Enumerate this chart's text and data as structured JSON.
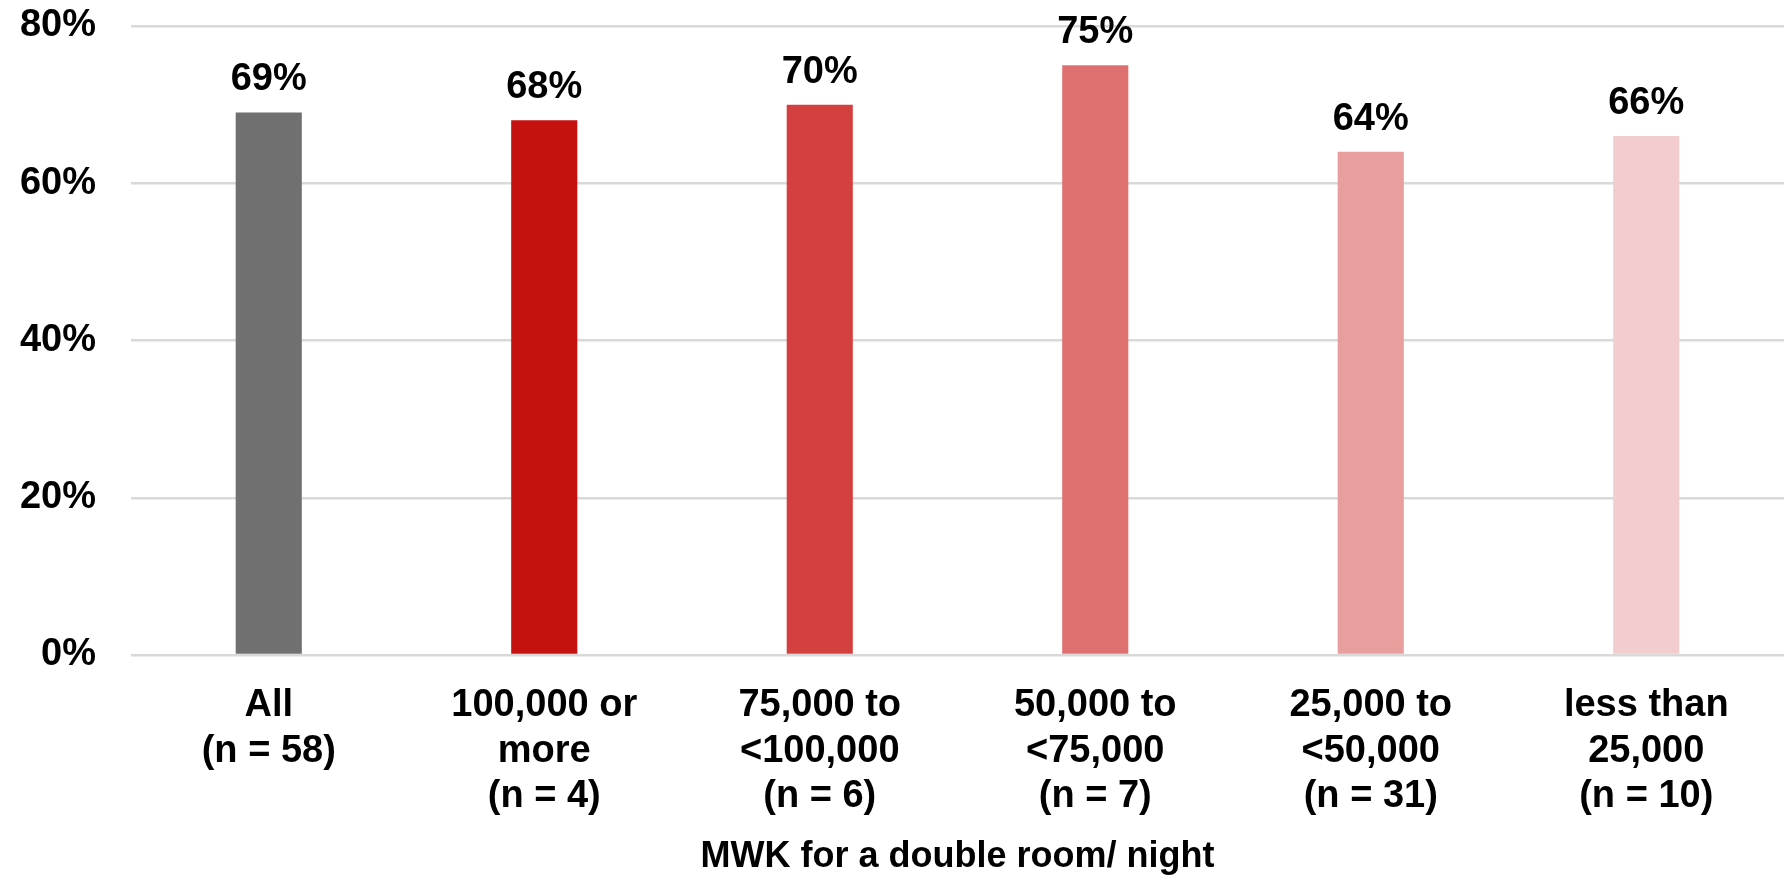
{
  "chart_data": {
    "type": "bar",
    "categories": [
      "All\n(n = 58)",
      "100,000 or\nmore\n(n = 4)",
      "75,000 to\n<100,000\n(n = 6)",
      "50,000 to\n<75,000\n(n = 7)",
      "25,000 to\n<50,000\n(n = 31)",
      "less than\n25,000\n(n = 10)"
    ],
    "values": [
      69,
      68,
      70,
      75,
      64,
      66
    ],
    "colors": [
      "#707070",
      "#c61111",
      "#d44040",
      "#df7070",
      "#e99e9e",
      "#f3cdcd"
    ],
    "value_labels": [
      "69%",
      "68%",
      "70%",
      "75%",
      "64%",
      "66%"
    ],
    "xlabel": "MWK for a double room/ night",
    "ylim": [
      0,
      80
    ],
    "yticks": [
      {
        "value": 0,
        "label": "0%"
      },
      {
        "value": 20,
        "label": "20%"
      },
      {
        "value": 40,
        "label": "40%"
      },
      {
        "value": 60,
        "label": "60%"
      },
      {
        "value": 80,
        "label": "80%"
      }
    ],
    "grid": "y"
  }
}
